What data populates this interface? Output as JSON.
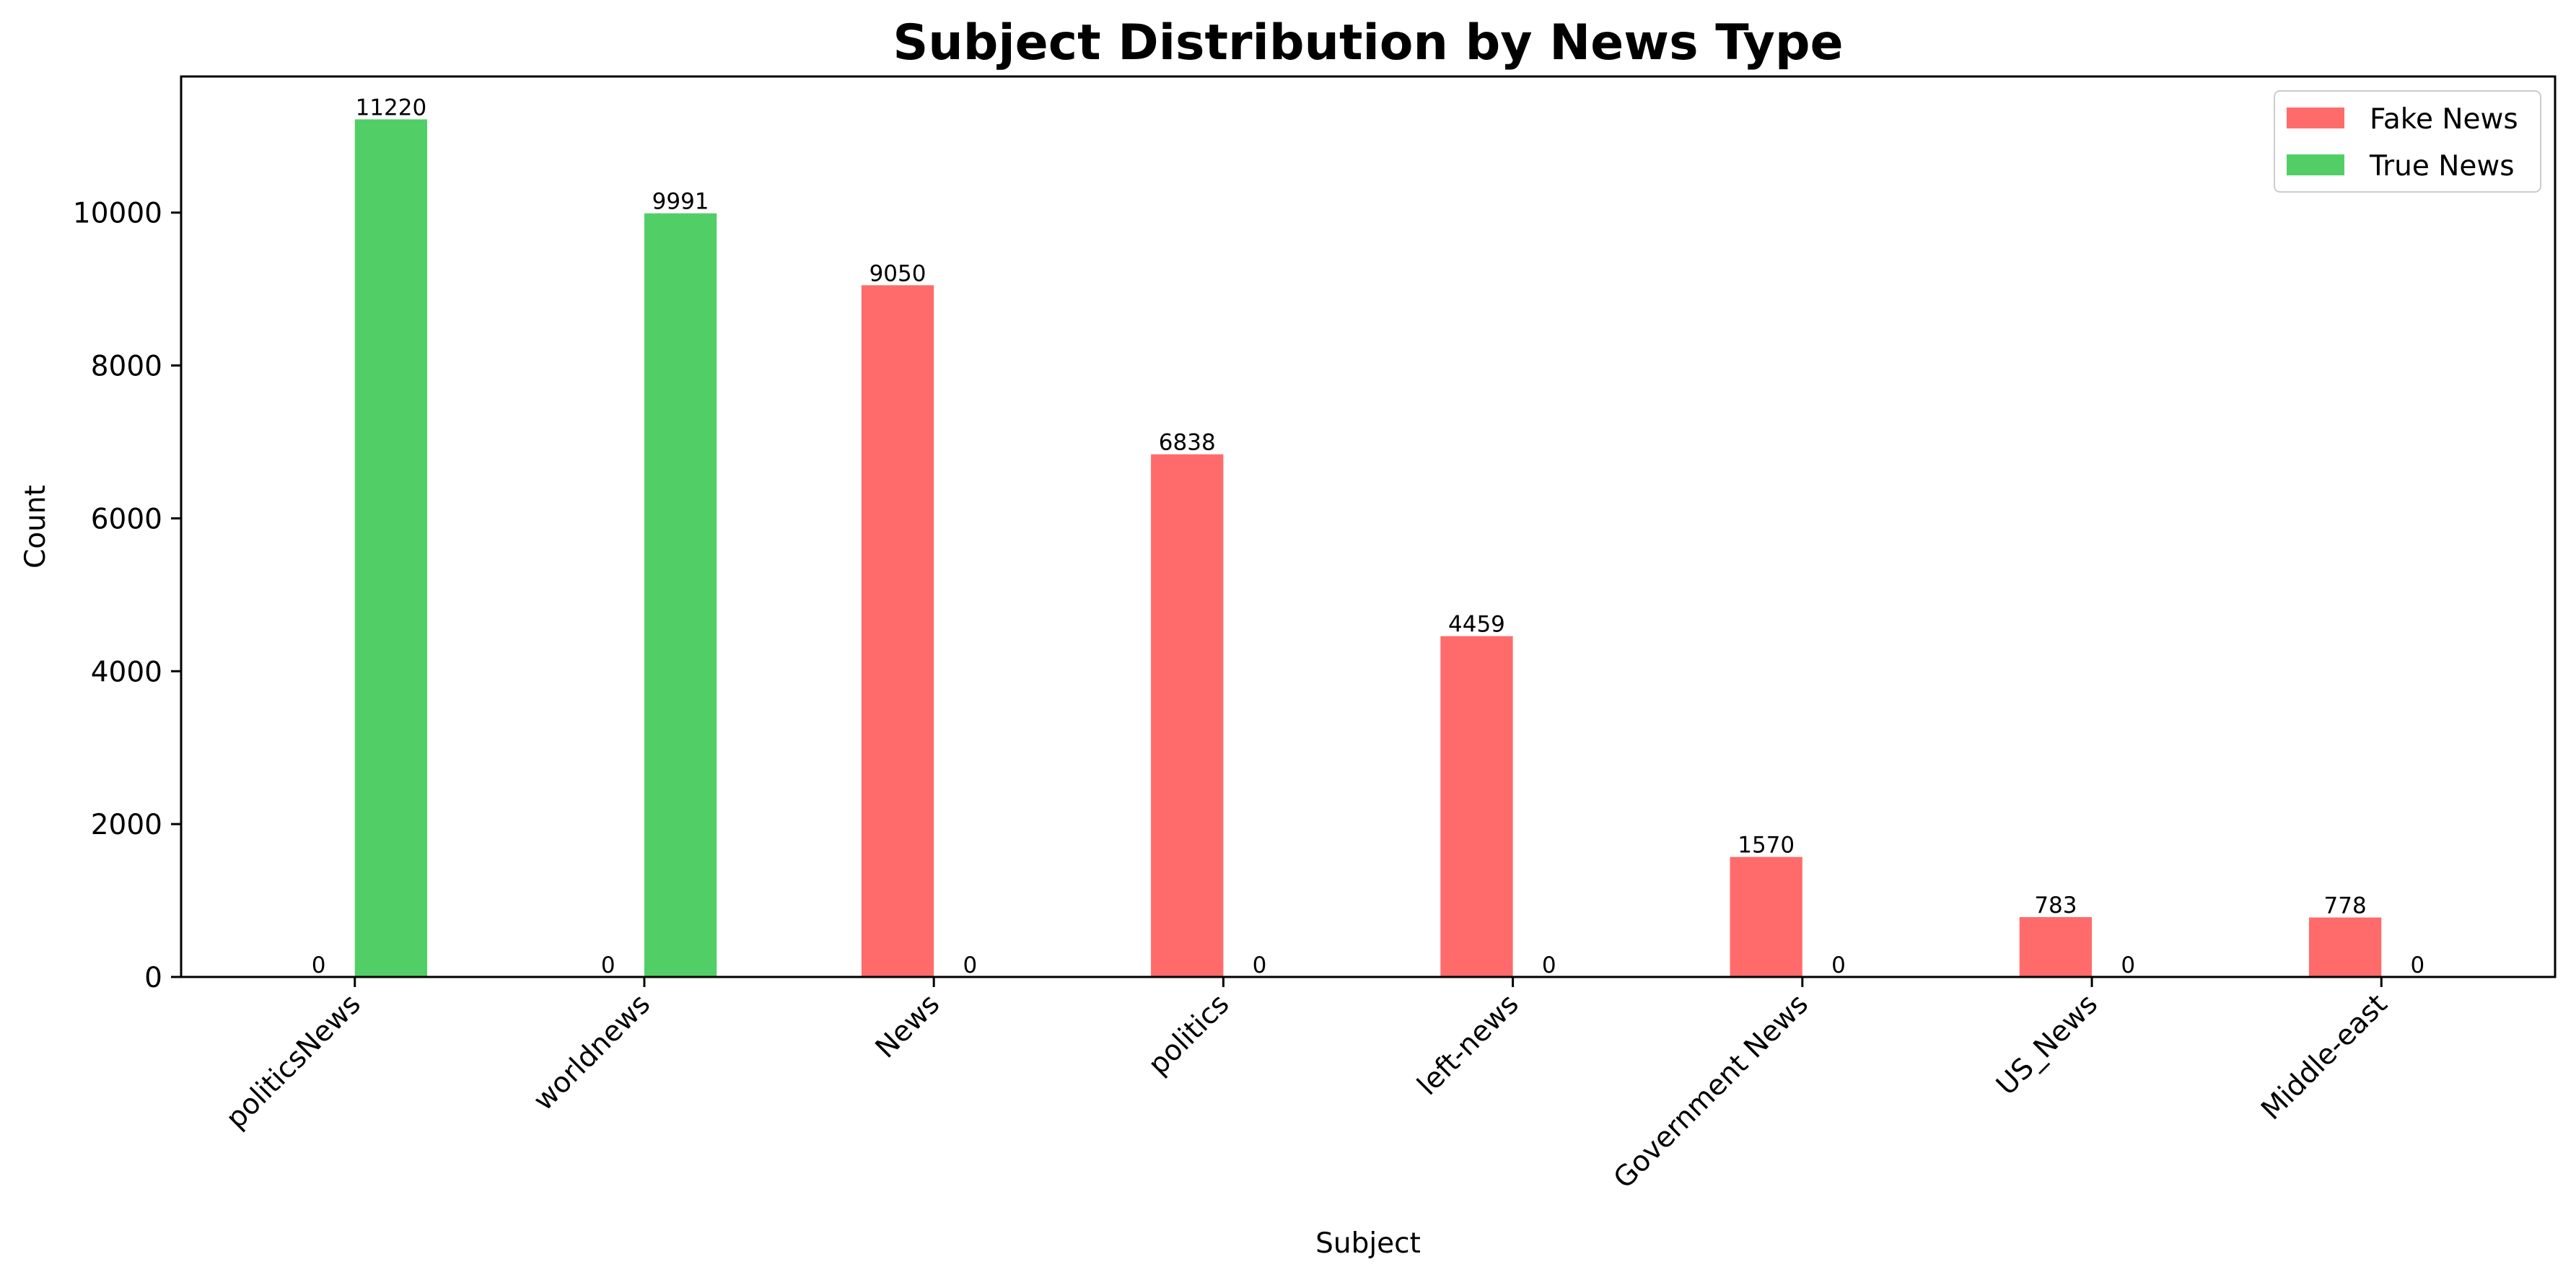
{
  "chart_data": {
    "type": "bar",
    "title": "Subject Distribution by News Type",
    "xlabel": "Subject",
    "ylabel": "Count",
    "ylim": [
      0,
      11781
    ],
    "yticks": [
      0,
      2000,
      4000,
      6000,
      8000,
      10000
    ],
    "categories": [
      "politicsNews",
      "worldnews",
      "News",
      "politics",
      "left-news",
      "Government News",
      "US_News",
      "Middle-east"
    ],
    "series": [
      {
        "name": "Fake News",
        "color": "#ff6b6b",
        "values": [
          0,
          0,
          9050,
          6838,
          4459,
          1570,
          783,
          778
        ]
      },
      {
        "name": "True News",
        "color": "#51cf66",
        "values": [
          11220,
          9991,
          0,
          0,
          0,
          0,
          0,
          0
        ]
      }
    ],
    "legend_position": "top-right",
    "grid": false
  }
}
